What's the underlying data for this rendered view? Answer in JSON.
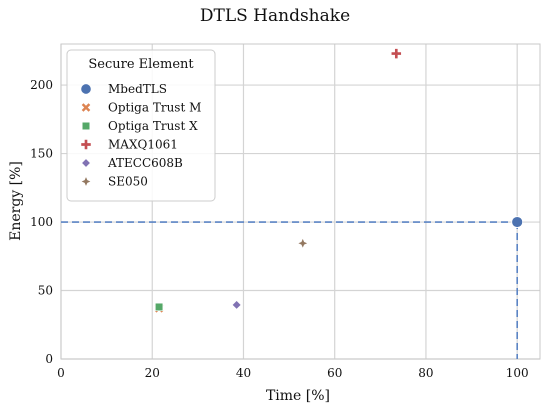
{
  "chart_data": {
    "type": "scatter",
    "title": "DTLS Handshake",
    "xlabel": "Time [%]",
    "ylabel": "Energy [%]",
    "xlim": [
      0,
      105
    ],
    "ylim": [
      0,
      230
    ],
    "x_ticks": [
      0,
      20,
      40,
      60,
      80,
      100
    ],
    "y_ticks": [
      0,
      50,
      100,
      150,
      200
    ],
    "grid": true,
    "legend": {
      "title": "Secure Element",
      "placement": "top-left"
    },
    "reference_lines": {
      "x": 100,
      "y": 100,
      "color": "#5b84c4",
      "style": "dashed"
    },
    "series": [
      {
        "name": "MbedTLS",
        "marker": "circle",
        "color": "#4c72b0",
        "x": [
          100
        ],
        "y": [
          100
        ]
      },
      {
        "name": "Optiga Trust M",
        "marker": "x",
        "color": "#dd8452",
        "x": [
          21.5
        ],
        "y": [
          37
        ]
      },
      {
        "name": "Optiga Trust X",
        "marker": "square",
        "color": "#55a868",
        "x": [
          21.5
        ],
        "y": [
          38
        ]
      },
      {
        "name": "MAXQ1061",
        "marker": "plus",
        "color": "#c44e52",
        "x": [
          73.5
        ],
        "y": [
          223
        ]
      },
      {
        "name": "ATECC608B",
        "marker": "diamond",
        "color": "#8172b3",
        "x": [
          38.5
        ],
        "y": [
          39.5
        ]
      },
      {
        "name": "SE050",
        "marker": "star",
        "color": "#937860",
        "x": [
          53
        ],
        "y": [
          84.5
        ]
      }
    ]
  }
}
